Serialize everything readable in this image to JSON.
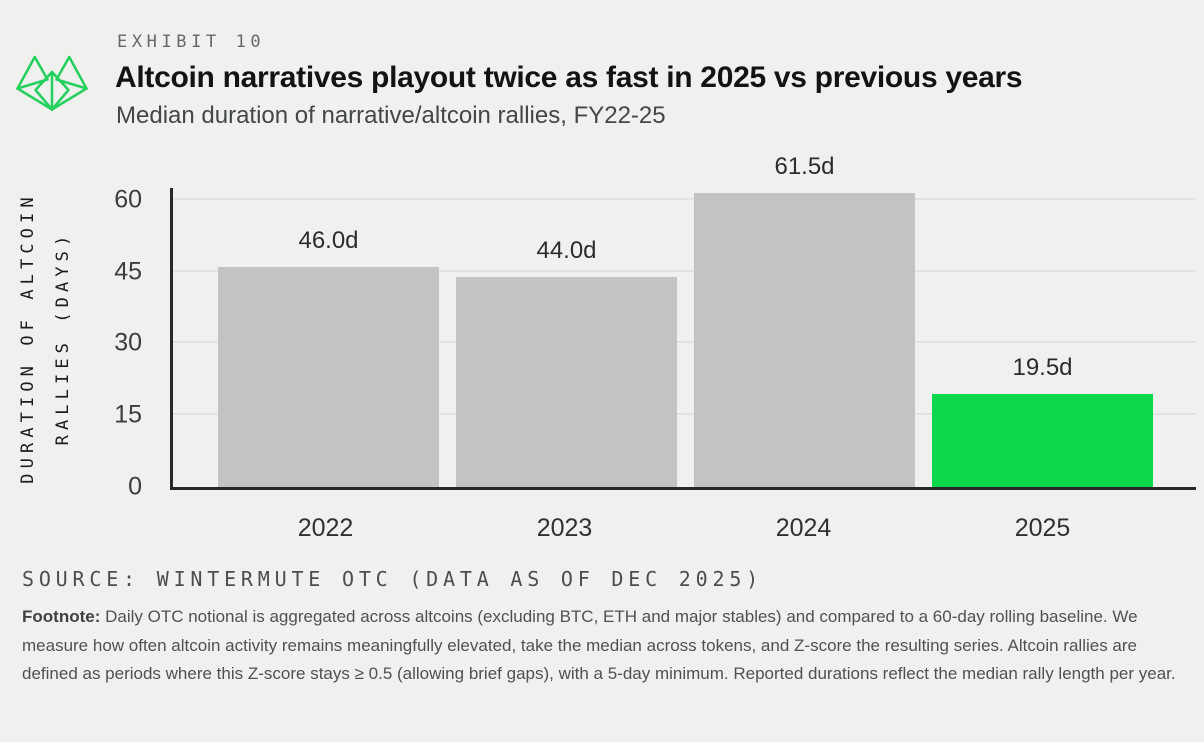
{
  "header": {
    "exhibit_label": "EXHIBIT 10",
    "title": "Altcoin narratives playout twice as fast in 2025 vs previous years",
    "subtitle": "Median duration of narrative/altcoin rallies, FY22-25"
  },
  "logo": {
    "name": "wintermute-logo",
    "color": "#25d05e"
  },
  "chart_data": {
    "type": "bar",
    "title": "Altcoin narratives playout twice as fast in 2025 vs previous years",
    "subtitle": "Median duration of narrative/altcoin rallies, FY22-25",
    "categories": [
      "2022",
      "2023",
      "2024",
      "2025"
    ],
    "values": [
      46.0,
      44.0,
      61.5,
      19.5
    ],
    "value_labels": [
      "46.0d",
      "44.0d",
      "61.5d",
      "19.5d"
    ],
    "unit": "days",
    "ylabel_line1": "DURATION OF ALTCOIN",
    "ylabel_line2": "RALLIES (DAYS)",
    "yticks": [
      0,
      15,
      30,
      45,
      60
    ],
    "ylim": [
      0,
      62.5
    ],
    "grid": "horizontal",
    "legend": "none",
    "bar_colors": [
      "#c1c4c1",
      "#c1c4c1",
      "#c1c4c1",
      "#0dd84d"
    ],
    "default_bar_color": "#c1c4c1",
    "highlight_color": "#0dd84d",
    "axis_color": "#282828",
    "gridline_color": "#e2e3e1",
    "background_color": "#f0f1ef"
  },
  "source_line": "SOURCE: WINTERMUTE OTC (DATA AS OF DEC 2025)",
  "footnote": {
    "label": "Footnote:",
    "text": " Daily OTC notional is aggregated across altcoins (excluding BTC, ETH and major stables) and compared to a 60-day rolling baseline. We measure how often altcoin activity remains meaningfully elevated, take the median across tokens, and Z-score the resulting series. Altcoin rallies are defined as periods where this Z-score stays ≥ 0.5 (allowing brief gaps), with a 5-day minimum. Reported durations reflect the median rally length per year."
  }
}
